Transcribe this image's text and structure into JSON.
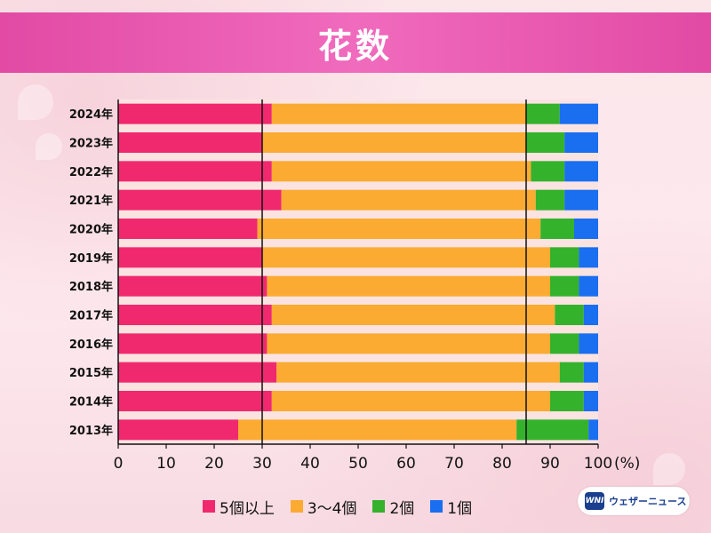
{
  "title": "花数",
  "legend_items": [
    "5個以上",
    "3〜4個",
    "2個",
    "1個"
  ],
  "logo": {
    "mark": "WNI",
    "text": "ウェザーニュース"
  },
  "chart_data": {
    "type": "bar",
    "orientation": "horizontal",
    "stacked": true,
    "title": "花数",
    "categories": [
      "2024年",
      "2023年",
      "2022年",
      "2021年",
      "2020年",
      "2019年",
      "2018年",
      "2017年",
      "2016年",
      "2015年",
      "2014年",
      "2013年"
    ],
    "series": [
      {
        "name": "5個以上",
        "color": "#f0296e",
        "values": [
          32,
          30,
          32,
          34,
          29,
          30,
          31,
          32,
          31,
          33,
          32,
          25
        ]
      },
      {
        "name": "3〜4個",
        "color": "#fbab32",
        "values": [
          53,
          55,
          54,
          53,
          59,
          60,
          59,
          59,
          59,
          59,
          58,
          58
        ]
      },
      {
        "name": "2個",
        "color": "#34b22c",
        "values": [
          7,
          8,
          7,
          6,
          7,
          6,
          6,
          6,
          6,
          5,
          7,
          15
        ]
      },
      {
        "name": "1個",
        "color": "#1a6ef0",
        "values": [
          8,
          7,
          7,
          7,
          5,
          4,
          4,
          3,
          4,
          3,
          3,
          2
        ]
      }
    ],
    "x_ticks": [
      0,
      10,
      20,
      30,
      40,
      50,
      60,
      70,
      80,
      90,
      100
    ],
    "x_unit": "(%)",
    "xlim": [
      0,
      100
    ],
    "reference_lines": [
      30,
      85
    ],
    "grid": false,
    "legend_position": "bottom"
  }
}
